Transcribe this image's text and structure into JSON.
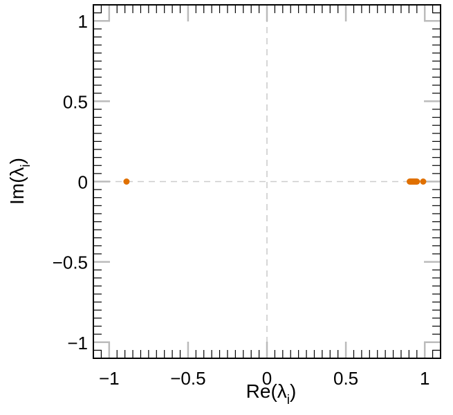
{
  "chart_data": {
    "type": "scatter",
    "title": "",
    "xlabel": {
      "main": "Re(λ",
      "sub": "i",
      "close": ")"
    },
    "ylabel": {
      "main": "Im(λ",
      "sub": "i",
      "close": ")"
    },
    "xlim": [
      -1.1,
      1.1
    ],
    "ylim": [
      -1.1,
      1.1
    ],
    "x_ticks": [
      {
        "value": -1,
        "label": "−1"
      },
      {
        "value": -0.5,
        "label": "−0.5"
      },
      {
        "value": 0,
        "label": "0"
      },
      {
        "value": 0.5,
        "label": "0.5"
      },
      {
        "value": 1,
        "label": "1"
      }
    ],
    "y_ticks": [
      {
        "value": -1,
        "label": "−1"
      },
      {
        "value": -0.5,
        "label": "−0.5"
      },
      {
        "value": 0,
        "label": "0"
      },
      {
        "value": 0.5,
        "label": "0.5"
      },
      {
        "value": 1,
        "label": "1"
      }
    ],
    "minor_tick_step": 0.05,
    "reference_lines": {
      "x": 0,
      "y": 0
    },
    "grid": false,
    "series": [
      {
        "color": "#E07000",
        "points": [
          {
            "x": -0.89,
            "y": 0
          },
          {
            "x": 0.905,
            "y": 0
          },
          {
            "x": 0.91,
            "y": 0
          },
          {
            "x": 0.915,
            "y": 0
          },
          {
            "x": 0.92,
            "y": 0
          },
          {
            "x": 0.925,
            "y": 0
          },
          {
            "x": 0.93,
            "y": 0
          },
          {
            "x": 0.935,
            "y": 0
          },
          {
            "x": 0.94,
            "y": 0
          },
          {
            "x": 0.945,
            "y": 0
          },
          {
            "x": 0.95,
            "y": 0
          },
          {
            "x": 0.99,
            "y": 0
          }
        ]
      }
    ]
  }
}
